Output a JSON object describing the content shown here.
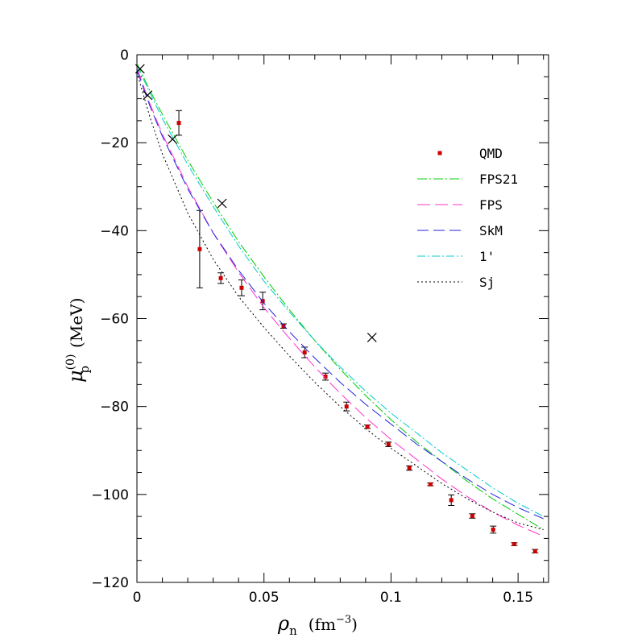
{
  "chart_data": {
    "type": "line",
    "xlabel": {
      "symbol": "ρ",
      "sub": "n",
      "unit_pre": "(fm",
      "unit_sup": "−3",
      "unit_post": ")"
    },
    "ylabel": {
      "symbol": "μ",
      "sup": "(0)",
      "sub": "p",
      "unit": "(MeV)"
    },
    "xlim": [
      0,
      0.162
    ],
    "ylim": [
      -120,
      0
    ],
    "xticks": [
      {
        "v": 0,
        "label": "0"
      },
      {
        "v": 0.05,
        "label": "0.05"
      },
      {
        "v": 0.1,
        "label": "0.1"
      },
      {
        "v": 0.15,
        "label": "0.15"
      }
    ],
    "yticks": [
      {
        "v": 0,
        "label": "0"
      },
      {
        "v": -20,
        "label": "−20"
      },
      {
        "v": -40,
        "label": "−40"
      },
      {
        "v": -60,
        "label": "−60"
      },
      {
        "v": -80,
        "label": "−80"
      },
      {
        "v": -100,
        "label": "−100"
      },
      {
        "v": -120,
        "label": "−120"
      }
    ],
    "grid": false,
    "legend_position": "right",
    "series": [
      {
        "name": "QMD",
        "kind": "points",
        "color": "#cc0000",
        "points": [
          {
            "x": 0.0165,
            "y": -15.5,
            "err": 2.8
          },
          {
            "x": 0.0247,
            "y": -44.2,
            "err": 8.8
          },
          {
            "x": 0.033,
            "y": -50.8,
            "err": 1.2
          },
          {
            "x": 0.0412,
            "y": -53.0,
            "err": 1.8
          },
          {
            "x": 0.0495,
            "y": -56.0,
            "err": 2.0
          },
          {
            "x": 0.0577,
            "y": -61.7,
            "err": 0.5
          },
          {
            "x": 0.066,
            "y": -67.7,
            "err": 1.2
          },
          {
            "x": 0.0742,
            "y": -73.2,
            "err": 0.8
          },
          {
            "x": 0.0825,
            "y": -80.0,
            "err": 1.0
          },
          {
            "x": 0.0907,
            "y": -84.6,
            "err": 0.4
          },
          {
            "x": 0.099,
            "y": -88.6,
            "err": 0.5
          },
          {
            "x": 0.1072,
            "y": -94.0,
            "err": 0.5
          },
          {
            "x": 0.1155,
            "y": -97.7,
            "err": 0.3
          },
          {
            "x": 0.1237,
            "y": -101.3,
            "err": 1.2
          },
          {
            "x": 0.132,
            "y": -104.9,
            "err": 0.5
          },
          {
            "x": 0.1402,
            "y": -108.0,
            "err": 0.8
          },
          {
            "x": 0.1485,
            "y": -111.3,
            "err": 0.3
          },
          {
            "x": 0.1567,
            "y": -112.9,
            "err": 0.4
          }
        ]
      },
      {
        "name": "FPS21",
        "kind": "line",
        "color": "#00cc00",
        "dash": "12 3 2 3",
        "x": [
          0,
          0.005,
          0.01,
          0.02,
          0.03,
          0.04,
          0.05,
          0.06,
          0.07,
          0.08,
          0.09,
          0.1,
          0.11,
          0.12,
          0.13,
          0.14,
          0.15,
          0.16
        ],
        "y": [
          -2,
          -8,
          -13.5,
          -24,
          -33.5,
          -42.5,
          -50.5,
          -58,
          -65,
          -71.5,
          -77.5,
          -83,
          -88,
          -92.5,
          -97,
          -101,
          -104.5,
          -108
        ]
      },
      {
        "name": "FPS",
        "kind": "line",
        "color": "#ff33cc",
        "dash": "16 6",
        "x": [
          0,
          0.005,
          0.01,
          0.02,
          0.03,
          0.04,
          0.05,
          0.06,
          0.07,
          0.08,
          0.09,
          0.1,
          0.11,
          0.12,
          0.13,
          0.14,
          0.15,
          0.16
        ],
        "y": [
          -3,
          -11,
          -18,
          -30,
          -40.5,
          -49.5,
          -57.5,
          -64.5,
          -71,
          -77,
          -82.5,
          -87.5,
          -92,
          -96.5,
          -100.5,
          -104,
          -107,
          -109.5
        ]
      },
      {
        "name": "SkM",
        "kind": "line",
        "color": "#2222dd",
        "dash": "14 6",
        "x": [
          0,
          0.005,
          0.01,
          0.02,
          0.03,
          0.04,
          0.05,
          0.06,
          0.07,
          0.08,
          0.09,
          0.1,
          0.11,
          0.12,
          0.13,
          0.14,
          0.15,
          0.16
        ],
        "y": [
          -3.5,
          -11.5,
          -18.5,
          -30.5,
          -40.5,
          -49,
          -56.5,
          -63,
          -69,
          -74.5,
          -79.5,
          -84,
          -88.5,
          -92.5,
          -96.5,
          -100,
          -103,
          -105.5
        ]
      },
      {
        "name": "1'",
        "kind": "line",
        "color": "#00cccc",
        "dash": "10 3 2 3",
        "x": [
          0,
          0.005,
          0.01,
          0.02,
          0.03,
          0.04,
          0.05,
          0.06,
          0.07,
          0.08,
          0.09,
          0.1,
          0.11,
          0.12,
          0.13,
          0.14,
          0.15,
          0.16
        ],
        "y": [
          -2.5,
          -8.5,
          -14.5,
          -25,
          -34.5,
          -43.5,
          -51.5,
          -58.5,
          -65,
          -71,
          -76.5,
          -81.5,
          -86,
          -90.5,
          -94.5,
          -98.5,
          -102,
          -105
        ]
      },
      {
        "name": "Sj",
        "kind": "line",
        "color": "#000000",
        "dash": "2 3",
        "x": [
          0,
          0.005,
          0.01,
          0.02,
          0.03,
          0.04,
          0.05,
          0.06,
          0.07,
          0.08,
          0.09,
          0.1,
          0.11,
          0.12,
          0.13,
          0.14,
          0.15,
          0.16
        ],
        "y": [
          -4,
          -14,
          -22.5,
          -36,
          -46.5,
          -55,
          -62,
          -68.5,
          -74.5,
          -80,
          -85,
          -89.5,
          -93.5,
          -97.5,
          -101,
          -104,
          -106.5,
          -108
        ]
      },
      {
        "name": "",
        "kind": "crosses",
        "color": "#000000",
        "points": [
          {
            "x": 0.0012,
            "y": -3.2
          },
          {
            "x": 0.0042,
            "y": -9.2
          },
          {
            "x": 0.014,
            "y": -19.2
          },
          {
            "x": 0.0335,
            "y": -33.8
          },
          {
            "x": 0.0925,
            "y": -64.3
          }
        ]
      }
    ]
  }
}
